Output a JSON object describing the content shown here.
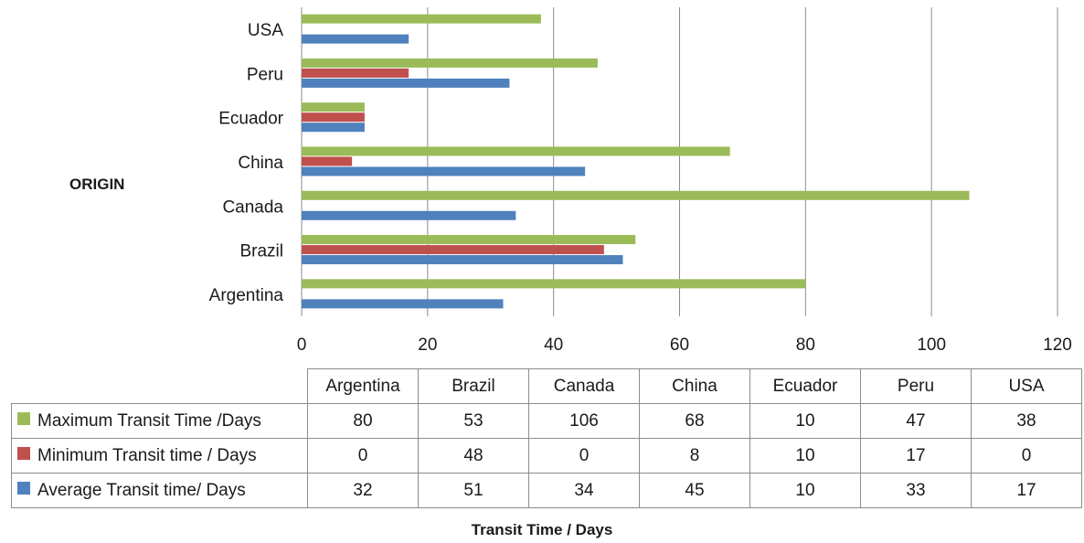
{
  "chart_data": {
    "type": "bar",
    "orientation": "horizontal",
    "categories": [
      "Argentina",
      "Brazil",
      "Canada",
      "China",
      "Ecuador",
      "Peru",
      "USA"
    ],
    "series": [
      {
        "name": "Maximum Transit Time /Days",
        "color": "#9bbb59",
        "values": [
          80,
          53,
          106,
          68,
          10,
          47,
          38
        ]
      },
      {
        "name": "Minimum Transit time / Days",
        "color": "#c0504d",
        "values": [
          0,
          48,
          0,
          8,
          10,
          17,
          0
        ]
      },
      {
        "name": "Average Transit time/ Days",
        "color": "#4f81bd",
        "values": [
          32,
          51,
          34,
          45,
          10,
          33,
          17
        ]
      }
    ],
    "xlabel": "Transit Time / Days",
    "ylabel": "ORIGIN",
    "xlim": [
      0,
      120
    ],
    "xticks": [
      "0",
      "20",
      "40",
      "60",
      "80",
      "100",
      "120"
    ],
    "grid": "vertical",
    "legend": "data-table"
  }
}
